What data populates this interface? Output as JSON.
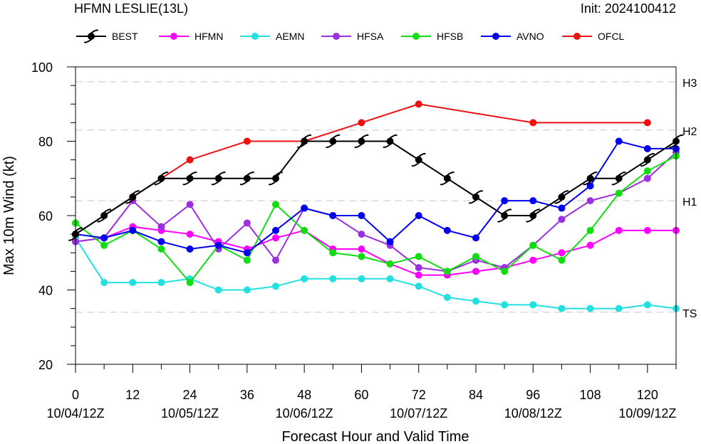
{
  "header": {
    "title": "HFMN LESLIE(13L)",
    "init": "Init: 2024100412"
  },
  "chart_data": {
    "type": "line",
    "xlabel": "Forecast Hour and Valid Time",
    "ylabel": "Max 10m Wind (kt)",
    "xlim": [
      0,
      126
    ],
    "ylim": [
      20,
      100
    ],
    "y_ticks": [
      20,
      40,
      60,
      80,
      100
    ],
    "x_ticks": [
      {
        "value": 0,
        "hour": "0",
        "date": "10/04/12Z"
      },
      {
        "value": 12,
        "hour": "12",
        "date": ""
      },
      {
        "value": 24,
        "hour": "24",
        "date": "10/05/12Z"
      },
      {
        "value": 36,
        "hour": "36",
        "date": ""
      },
      {
        "value": 48,
        "hour": "48",
        "date": "10/06/12Z"
      },
      {
        "value": 60,
        "hour": "60",
        "date": ""
      },
      {
        "value": 72,
        "hour": "72",
        "date": "10/07/12Z"
      },
      {
        "value": 84,
        "hour": "84",
        "date": ""
      },
      {
        "value": 96,
        "hour": "96",
        "date": "10/08/12Z"
      },
      {
        "value": 108,
        "hour": "108",
        "date": ""
      },
      {
        "value": 120,
        "hour": "120",
        "date": "10/09/12Z"
      }
    ],
    "thresholds": [
      {
        "label": "TS",
        "value": 34
      },
      {
        "label": "H1",
        "value": 64
      },
      {
        "label": "H2",
        "value": 83
      },
      {
        "label": "H3",
        "value": 96
      }
    ],
    "grid": false,
    "legend": "top",
    "series": [
      {
        "name": "BEST",
        "color": "#000000",
        "marker": "hurricane-symbol",
        "x": [
          0,
          6,
          12,
          18,
          24,
          30,
          36,
          42,
          48,
          54,
          60,
          66,
          72,
          78,
          84,
          90,
          96,
          102,
          108,
          114,
          120,
          126
        ],
        "y": [
          55,
          60,
          65,
          70,
          70,
          70,
          70,
          70,
          80,
          80,
          80,
          80,
          75,
          70,
          65,
          60,
          60,
          65,
          70,
          70,
          75,
          80
        ]
      },
      {
        "name": "HFMN",
        "color": "#ff00ff",
        "marker": "circle",
        "x": [
          0,
          6,
          12,
          18,
          24,
          30,
          36,
          42,
          48,
          54,
          60,
          66,
          72,
          78,
          84,
          90,
          96,
          102,
          108,
          114,
          120,
          126
        ],
        "y": [
          53,
          54,
          57,
          56,
          55,
          53,
          51,
          54,
          56,
          51,
          51,
          47,
          44,
          44,
          45,
          46,
          48,
          50,
          52,
          56,
          56,
          56
        ]
      },
      {
        "name": "AEMN",
        "color": "#22e0e0",
        "marker": "circle",
        "x": [
          0,
          6,
          12,
          18,
          24,
          30,
          36,
          42,
          48,
          54,
          60,
          66,
          72,
          78,
          84,
          90,
          96,
          102,
          108,
          114,
          120,
          126
        ],
        "y": [
          54,
          42,
          42,
          42,
          43,
          40,
          40,
          41,
          43,
          43,
          43,
          43,
          41,
          38,
          37,
          36,
          36,
          35,
          35,
          35,
          36,
          35
        ]
      },
      {
        "name": "HFSA",
        "color": "#9b30e0",
        "marker": "circle",
        "x": [
          0,
          6,
          12,
          18,
          24,
          30,
          36,
          42,
          48,
          54,
          60,
          66,
          72,
          78,
          84,
          90,
          96,
          102,
          108,
          114,
          120,
          126
        ],
        "y": [
          53,
          54,
          64,
          57,
          63,
          51,
          58,
          48,
          62,
          60,
          55,
          52,
          46,
          45,
          48,
          46,
          52,
          59,
          64,
          66,
          70,
          77
        ]
      },
      {
        "name": "HFSB",
        "color": "#11dd11",
        "marker": "circle",
        "x": [
          0,
          6,
          12,
          18,
          24,
          30,
          36,
          42,
          48,
          54,
          60,
          66,
          72,
          78,
          84,
          90,
          96,
          102,
          108,
          114,
          120,
          126
        ],
        "y": [
          58,
          52,
          56,
          51,
          42,
          52,
          48,
          63,
          56,
          50,
          49,
          47,
          49,
          45,
          49,
          45,
          52,
          48,
          56,
          66,
          72,
          76
        ]
      },
      {
        "name": "AVNO",
        "color": "#0000ee",
        "marker": "circle",
        "x": [
          0,
          6,
          12,
          18,
          24,
          30,
          36,
          42,
          48,
          54,
          60,
          66,
          72,
          78,
          84,
          90,
          96,
          102,
          108,
          114,
          120,
          126
        ],
        "y": [
          55,
          54,
          56,
          53,
          51,
          52,
          50,
          56,
          62,
          60,
          60,
          53,
          60,
          56,
          54,
          64,
          64,
          62,
          68,
          80,
          78,
          78
        ]
      },
      {
        "name": "OFCL",
        "color": "#ee1111",
        "marker": "circle",
        "x": [
          0,
          12,
          24,
          36,
          48,
          60,
          72,
          96,
          120
        ],
        "y": [
          55,
          65,
          75,
          80,
          80,
          85,
          90,
          85,
          85
        ]
      }
    ]
  }
}
